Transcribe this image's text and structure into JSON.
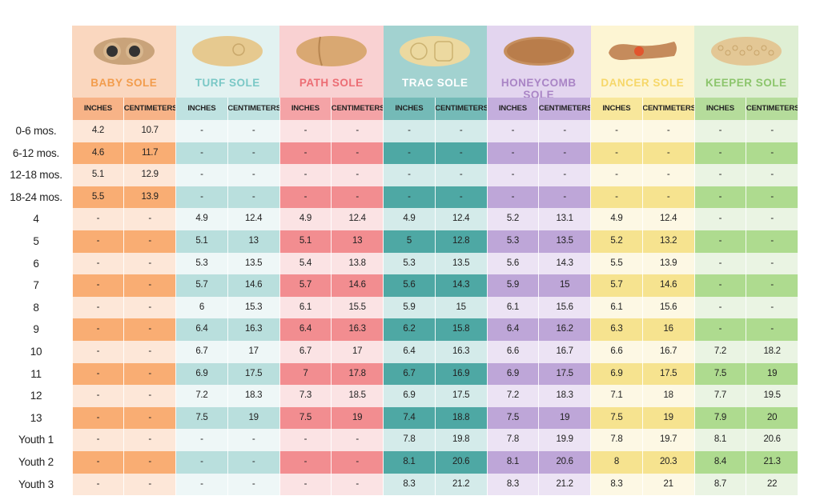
{
  "soles": [
    {
      "name": "BABY SOLE",
      "icon": "baby-sole-icon",
      "text_color": "#f29c4c",
      "header_bg": "#fad7bf",
      "unit_bg": "#f7b387",
      "light": "#fde7d8",
      "dark": "#f9ad73"
    },
    {
      "name": "TURF SOLE",
      "icon": "turf-sole-icon",
      "text_color": "#7ac8c6",
      "header_bg": "#e2f2f1",
      "unit_bg": "#bfe2e1",
      "light": "#eef7f7",
      "dark": "#b9dfdd"
    },
    {
      "name": "PATH SOLE",
      "icon": "path-sole-icon",
      "text_color": "#ec6d74",
      "header_bg": "#f9d1d2",
      "unit_bg": "#f4a3a6",
      "light": "#fbe3e4",
      "dark": "#f28d90"
    },
    {
      "name": "TRAC SOLE",
      "icon": "trac-sole-icon",
      "text_color": "#ffffff",
      "header_bg": "#a2d2d0",
      "unit_bg": "#74bab7",
      "light": "#d4ebea",
      "dark": "#4ea8a4"
    },
    {
      "name": "HONEYCOMB SOLE",
      "icon": "honeycomb-sole-icon",
      "text_color": "#a984c5",
      "header_bg": "#e3d5ef",
      "unit_bg": "#c4aedd",
      "light": "#ece3f4",
      "dark": "#bea6d8"
    },
    {
      "name": "DANCER SOLE",
      "icon": "dancer-sole-icon",
      "text_color": "#f6d769",
      "header_bg": "#fdf5d3",
      "unit_bg": "#f8e79b",
      "light": "#fdf8e4",
      "dark": "#f6e38f"
    },
    {
      "name": "KEEPER SOLE",
      "icon": "keeper-sole-icon",
      "text_color": "#8cc56c",
      "header_bg": "#dfefd4",
      "unit_bg": "#b5dc9b",
      "light": "#eaf4e3",
      "dark": "#aedb8f"
    }
  ],
  "unit_labels": [
    "INCHES",
    "CENTIMETERS"
  ],
  "rows": [
    {
      "label": "0-6 mos.",
      "values": [
        [
          "4.2",
          "10.7"
        ],
        [
          "-",
          "-"
        ],
        [
          "-",
          "-"
        ],
        [
          "-",
          "-"
        ],
        [
          "-",
          "-"
        ],
        [
          "-",
          "-"
        ],
        [
          "-",
          "-"
        ]
      ]
    },
    {
      "label": "6-12 mos.",
      "values": [
        [
          "4.6",
          "11.7"
        ],
        [
          "-",
          "-"
        ],
        [
          "-",
          "-"
        ],
        [
          "-",
          "-"
        ],
        [
          "-",
          "-"
        ],
        [
          "-",
          "-"
        ],
        [
          "-",
          "-"
        ]
      ]
    },
    {
      "label": "12-18 mos.",
      "values": [
        [
          "5.1",
          "12.9"
        ],
        [
          "-",
          "-"
        ],
        [
          "-",
          "-"
        ],
        [
          "-",
          "-"
        ],
        [
          "-",
          "-"
        ],
        [
          "-",
          "-"
        ],
        [
          "-",
          "-"
        ]
      ]
    },
    {
      "label": "18-24 mos.",
      "values": [
        [
          "5.5",
          "13.9"
        ],
        [
          "-",
          "-"
        ],
        [
          "-",
          "-"
        ],
        [
          "-",
          "-"
        ],
        [
          "-",
          "-"
        ],
        [
          "-",
          "-"
        ],
        [
          "-",
          "-"
        ]
      ]
    },
    {
      "label": "4",
      "values": [
        [
          "-",
          "-"
        ],
        [
          "4.9",
          "12.4"
        ],
        [
          "4.9",
          "12.4"
        ],
        [
          "4.9",
          "12.4"
        ],
        [
          "5.2",
          "13.1"
        ],
        [
          "4.9",
          "12.4"
        ],
        [
          "-",
          "-"
        ]
      ]
    },
    {
      "label": "5",
      "values": [
        [
          "-",
          "-"
        ],
        [
          "5.1",
          "13"
        ],
        [
          "5.1",
          "13"
        ],
        [
          "5",
          "12.8"
        ],
        [
          "5.3",
          "13.5"
        ],
        [
          "5.2",
          "13.2"
        ],
        [
          "-",
          "-"
        ]
      ]
    },
    {
      "label": "6",
      "values": [
        [
          "-",
          "-"
        ],
        [
          "5.3",
          "13.5"
        ],
        [
          "5.4",
          "13.8"
        ],
        [
          "5.3",
          "13.5"
        ],
        [
          "5.6",
          "14.3"
        ],
        [
          "5.5",
          "13.9"
        ],
        [
          "-",
          "-"
        ]
      ]
    },
    {
      "label": "7",
      "values": [
        [
          "-",
          "-"
        ],
        [
          "5.7",
          "14.6"
        ],
        [
          "5.7",
          "14.6"
        ],
        [
          "5.6",
          "14.3"
        ],
        [
          "5.9",
          "15"
        ],
        [
          "5.7",
          "14.6"
        ],
        [
          "-",
          "-"
        ]
      ]
    },
    {
      "label": "8",
      "values": [
        [
          "-",
          "-"
        ],
        [
          "6",
          "15.3"
        ],
        [
          "6.1",
          "15.5"
        ],
        [
          "5.9",
          "15"
        ],
        [
          "6.1",
          "15.6"
        ],
        [
          "6.1",
          "15.6"
        ],
        [
          "-",
          "-"
        ]
      ]
    },
    {
      "label": "9",
      "values": [
        [
          "-",
          "-"
        ],
        [
          "6.4",
          "16.3"
        ],
        [
          "6.4",
          "16.3"
        ],
        [
          "6.2",
          "15.8"
        ],
        [
          "6.4",
          "16.2"
        ],
        [
          "6.3",
          "16"
        ],
        [
          "-",
          "-"
        ]
      ]
    },
    {
      "label": "10",
      "values": [
        [
          "-",
          "-"
        ],
        [
          "6.7",
          "17"
        ],
        [
          "6.7",
          "17"
        ],
        [
          "6.4",
          "16.3"
        ],
        [
          "6.6",
          "16.7"
        ],
        [
          "6.6",
          "16.7"
        ],
        [
          "7.2",
          "18.2"
        ]
      ]
    },
    {
      "label": "11",
      "values": [
        [
          "-",
          "-"
        ],
        [
          "6.9",
          "17.5"
        ],
        [
          "7",
          "17.8"
        ],
        [
          "6.7",
          "16.9"
        ],
        [
          "6.9",
          "17.5"
        ],
        [
          "6.9",
          "17.5"
        ],
        [
          "7.5",
          "19"
        ]
      ]
    },
    {
      "label": "12",
      "values": [
        [
          "-",
          "-"
        ],
        [
          "7.2",
          "18.3"
        ],
        [
          "7.3",
          "18.5"
        ],
        [
          "6.9",
          "17.5"
        ],
        [
          "7.2",
          "18.3"
        ],
        [
          "7.1",
          "18"
        ],
        [
          "7.7",
          "19.5"
        ]
      ]
    },
    {
      "label": "13",
      "values": [
        [
          "-",
          "-"
        ],
        [
          "7.5",
          "19"
        ],
        [
          "7.5",
          "19"
        ],
        [
          "7.4",
          "18.8"
        ],
        [
          "7.5",
          "19"
        ],
        [
          "7.5",
          "19"
        ],
        [
          "7.9",
          "20"
        ]
      ]
    },
    {
      "label": "Youth 1",
      "values": [
        [
          "-",
          "-"
        ],
        [
          "-",
          "-"
        ],
        [
          "-",
          "-"
        ],
        [
          "7.8",
          "19.8"
        ],
        [
          "7.8",
          "19.9"
        ],
        [
          "7.8",
          "19.7"
        ],
        [
          "8.1",
          "20.6"
        ]
      ]
    },
    {
      "label": "Youth 2",
      "values": [
        [
          "-",
          "-"
        ],
        [
          "-",
          "-"
        ],
        [
          "-",
          "-"
        ],
        [
          "8.1",
          "20.6"
        ],
        [
          "8.1",
          "20.6"
        ],
        [
          "8",
          "20.3"
        ],
        [
          "8.4",
          "21.3"
        ]
      ]
    },
    {
      "label": "Youth 3",
      "values": [
        [
          "-",
          "-"
        ],
        [
          "-",
          "-"
        ],
        [
          "-",
          "-"
        ],
        [
          "8.3",
          "21.2"
        ],
        [
          "8.3",
          "21.2"
        ],
        [
          "8.3",
          "21"
        ],
        [
          "8.7",
          "22"
        ]
      ]
    }
  ]
}
